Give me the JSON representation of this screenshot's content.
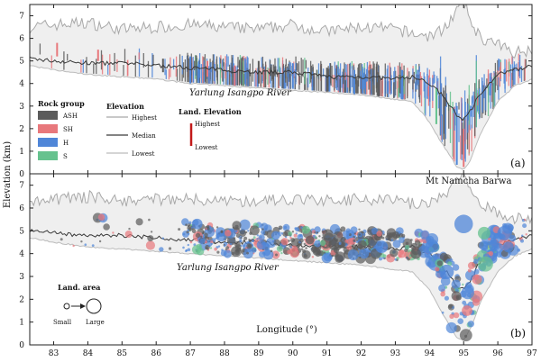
{
  "figure": {
    "y_axis_title": "Elevation (km)",
    "x_axis_title": "Longitude (°)",
    "colors": {
      "frame": "#222222",
      "band_fill": "#efefef",
      "highest_line": "#a8a8a8",
      "lowest_line": "#bcbcbc",
      "median_line": "#3a3a3a",
      "ash": "#5b5b5b",
      "sh": "#e8787c",
      "h": "#4f86d8",
      "s": "#66c28e",
      "landslide_line": "#c21a1a"
    }
  },
  "chart_data": [
    {
      "type": "line",
      "panel_label": "(a)",
      "river_label": "Yarlung Isangpo River",
      "xlim": [
        82.3,
        97.0
      ],
      "ylim": [
        0,
        7.5
      ],
      "x_ticks": [
        83,
        84,
        85,
        86,
        87,
        88,
        89,
        90,
        91,
        92,
        93,
        94,
        95,
        96,
        97
      ],
      "y_ticks": [
        0,
        1,
        2,
        3,
        4,
        5,
        6,
        7
      ],
      "x": [
        82.3,
        83,
        84,
        85,
        86,
        87,
        88,
        89,
        90,
        91,
        92,
        93,
        93.5,
        94,
        94.3,
        94.6,
        94.8,
        95,
        95.2,
        95.5,
        96,
        96.5,
        97
      ],
      "series": [
        {
          "name": "Highest",
          "values": [
            6.5,
            6.6,
            6.7,
            6.4,
            6.5,
            6.6,
            6.5,
            6.4,
            6.6,
            6.3,
            6.5,
            6.4,
            6.2,
            6.1,
            6.3,
            6.8,
            7.2,
            7.6,
            6.8,
            6.0,
            5.7,
            5.4,
            5.5
          ]
        },
        {
          "name": "Median",
          "values": [
            5.1,
            5.0,
            4.9,
            4.9,
            4.8,
            4.7,
            4.6,
            4.5,
            4.5,
            4.3,
            4.3,
            4.2,
            4.3,
            4.0,
            3.6,
            3.0,
            2.6,
            2.4,
            2.8,
            3.6,
            4.4,
            4.6,
            4.8
          ]
        },
        {
          "name": "Lowest",
          "values": [
            4.8,
            4.6,
            4.4,
            4.3,
            4.2,
            4.0,
            3.9,
            3.8,
            3.7,
            3.6,
            3.5,
            3.3,
            3.2,
            2.3,
            1.5,
            0.8,
            0.3,
            0.2,
            0.6,
            1.8,
            3.2,
            3.9,
            4.2
          ]
        }
      ],
      "bars_note": "Vertical bars: elevation range of each landslide, colored by rock group",
      "bar_samples": [
        {
          "lon": 83.1,
          "group": "SH",
          "low": 5.2,
          "high": 5.8
        },
        {
          "lon": 84.3,
          "group": "SH",
          "low": 5.0,
          "high": 5.5
        },
        {
          "lon": 86.2,
          "group": "ASH",
          "low": 4.5,
          "high": 5.1
        },
        {
          "lon": 87.0,
          "group": "H",
          "low": 4.0,
          "high": 5.2
        },
        {
          "lon": 87.5,
          "group": "SH",
          "low": 4.3,
          "high": 5.0
        },
        {
          "lon": 88.3,
          "group": "SH",
          "low": 3.9,
          "high": 4.8
        },
        {
          "lon": 89.0,
          "group": "ASH",
          "low": 4.0,
          "high": 5.0
        },
        {
          "lon": 90.0,
          "group": "H",
          "low": 3.8,
          "high": 4.9
        },
        {
          "lon": 91.0,
          "group": "ASH",
          "low": 3.6,
          "high": 4.7
        },
        {
          "lon": 91.8,
          "group": "H",
          "low": 3.5,
          "high": 4.6
        },
        {
          "lon": 92.5,
          "group": "ASH",
          "low": 3.4,
          "high": 4.5
        },
        {
          "lon": 93.2,
          "group": "H",
          "low": 3.3,
          "high": 4.6
        },
        {
          "lon": 94.2,
          "group": "S",
          "low": 2.2,
          "high": 3.8
        },
        {
          "lon": 94.8,
          "group": "H",
          "low": 0.4,
          "high": 3.0
        },
        {
          "lon": 95.0,
          "group": "SH",
          "low": 0.3,
          "high": 2.0
        }
      ],
      "legend": {
        "rock_group_title": "Rock group",
        "rock_groups": [
          {
            "code": "ASH",
            "color": "#5b5b5b"
          },
          {
            "code": "SH",
            "color": "#e8787c"
          },
          {
            "code": "H",
            "color": "#4f86d8"
          },
          {
            "code": "S",
            "color": "#66c28e"
          }
        ],
        "elevation_title": "Elevation",
        "elevation_items": [
          "Highest",
          "Median",
          "Lowest"
        ],
        "landslide_title": "Land. Elevation",
        "landslide_items": [
          "Highest",
          "Lowest"
        ]
      }
    },
    {
      "type": "scatter",
      "panel_label": "(b)",
      "river_label": "Yarlung Isangpo River",
      "annotation": "Mt Namcha Barwa",
      "xlim": [
        82.3,
        97.0
      ],
      "ylim": [
        0,
        7.5
      ],
      "x_ticks": [
        83,
        84,
        85,
        86,
        87,
        88,
        89,
        90,
        91,
        92,
        93,
        94,
        95,
        96,
        97
      ],
      "y_ticks": [
        0,
        1,
        2,
        3,
        4,
        5,
        6,
        7
      ],
      "x": [
        82.3,
        83,
        84,
        85,
        86,
        87,
        88,
        89,
        90,
        91,
        92,
        93,
        93.5,
        94,
        94.3,
        94.6,
        94.8,
        95,
        95.2,
        95.5,
        96,
        96.5,
        97
      ],
      "series": [
        {
          "name": "Highest",
          "values": [
            6.3,
            6.4,
            6.5,
            6.3,
            6.4,
            6.4,
            6.3,
            6.3,
            6.4,
            6.3,
            6.4,
            6.3,
            6.2,
            6.2,
            6.4,
            6.8,
            7.1,
            7.4,
            6.9,
            6.1,
            5.8,
            5.5,
            5.6
          ]
        },
        {
          "name": "Median",
          "values": [
            5.0,
            4.9,
            4.8,
            4.8,
            4.7,
            4.6,
            4.5,
            4.5,
            4.4,
            4.3,
            4.3,
            4.2,
            4.3,
            4.0,
            3.6,
            3.0,
            2.6,
            2.4,
            2.8,
            3.7,
            4.4,
            4.6,
            4.8
          ]
        },
        {
          "name": "Lowest",
          "values": [
            4.7,
            4.5,
            4.3,
            4.2,
            4.1,
            4.0,
            3.9,
            3.8,
            3.7,
            3.6,
            3.5,
            3.3,
            3.2,
            2.4,
            1.6,
            0.8,
            0.3,
            0.2,
            0.7,
            1.9,
            3.2,
            3.9,
            4.2
          ]
        }
      ],
      "points_note": "Circles: landslides; color = rock group, size = landslide area",
      "point_samples": [
        {
          "lon": 84.4,
          "elev": 5.6,
          "group": "SH",
          "size": 2
        },
        {
          "lon": 87.2,
          "elev": 5.3,
          "group": "H",
          "size": 4
        },
        {
          "lon": 88.1,
          "elev": 4.9,
          "group": "SH",
          "size": 2
        },
        {
          "lon": 89.5,
          "elev": 4.8,
          "group": "H",
          "size": 3
        },
        {
          "lon": 90.5,
          "elev": 4.6,
          "group": "ASH",
          "size": 3
        },
        {
          "lon": 91.2,
          "elev": 4.4,
          "group": "ASH",
          "size": 4
        },
        {
          "lon": 92.6,
          "elev": 4.3,
          "group": "H",
          "size": 5
        },
        {
          "lon": 93.6,
          "elev": 4.0,
          "group": "ASH",
          "size": 4
        },
        {
          "lon": 94.5,
          "elev": 3.2,
          "group": "H",
          "size": 6
        },
        {
          "lon": 95.0,
          "elev": 5.3,
          "group": "H",
          "size": 8
        },
        {
          "lon": 95.1,
          "elev": 1.5,
          "group": "SH",
          "size": 4
        },
        {
          "lon": 95.6,
          "elev": 4.9,
          "group": "S",
          "size": 5
        },
        {
          "lon": 96.2,
          "elev": 4.9,
          "group": "H",
          "size": 6
        }
      ],
      "legend": {
        "title": "Land. area",
        "small_label": "Small",
        "large_label": "Large"
      }
    }
  ]
}
